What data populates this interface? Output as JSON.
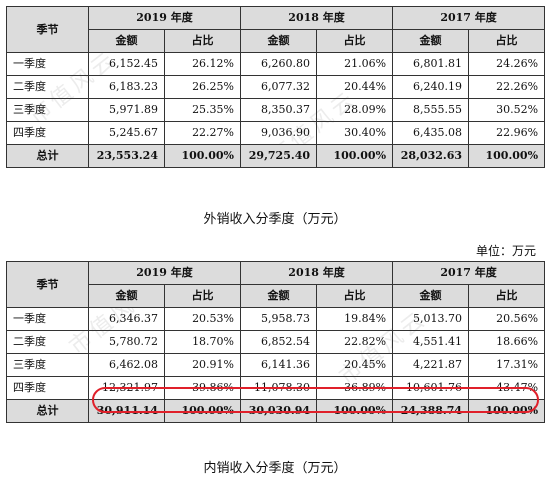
{
  "watermark": "市值风云",
  "unit_label": "单位：万元",
  "table_export": {
    "caption": "外销收入分季度（万元）",
    "header": {
      "season": "季节",
      "years": [
        "2019 年度",
        "2018 年度",
        "2017 年度"
      ],
      "amount": "金额",
      "share": "占比"
    },
    "rows": [
      {
        "season": "一季度",
        "cells": [
          "6,152.45",
          "26.12%",
          "6,260.80",
          "21.06%",
          "6,801.81",
          "24.26%"
        ]
      },
      {
        "season": "二季度",
        "cells": [
          "6,183.23",
          "26.25%",
          "6,077.32",
          "20.44%",
          "6,240.19",
          "22.26%"
        ]
      },
      {
        "season": "三季度",
        "cells": [
          "5,971.89",
          "25.35%",
          "8,350.37",
          "28.09%",
          "8,555.55",
          "30.52%"
        ]
      },
      {
        "season": "四季度",
        "cells": [
          "5,245.67",
          "22.27%",
          "9,036.90",
          "30.40%",
          "6,435.08",
          "22.96%"
        ]
      }
    ],
    "total": {
      "season": "总计",
      "cells": [
        "23,553.24",
        "100.00%",
        "29,725.40",
        "100.00%",
        "28,032.63",
        "100.00%"
      ]
    }
  },
  "table_domestic": {
    "caption": "内销收入分季度（万元）",
    "header": {
      "season": "季节",
      "years": [
        "2019 年度",
        "2018 年度",
        "2017 年度"
      ],
      "amount": "金额",
      "share": "占比"
    },
    "rows": [
      {
        "season": "一季度",
        "cells": [
          "6,346.37",
          "20.53%",
          "5,958.73",
          "19.84%",
          "5,013.70",
          "20.56%"
        ]
      },
      {
        "season": "二季度",
        "cells": [
          "5,780.72",
          "18.70%",
          "6,852.54",
          "22.82%",
          "4,551.41",
          "18.66%"
        ]
      },
      {
        "season": "三季度",
        "cells": [
          "6,462.08",
          "20.91%",
          "6,141.36",
          "20.45%",
          "4,221.87",
          "17.31%"
        ]
      },
      {
        "season": "四季度",
        "cells": [
          "12,321.97",
          "39.86%",
          "11,078.30",
          "36.89%",
          "10,601.76",
          "43.47%"
        ]
      }
    ],
    "total": {
      "season": "总计",
      "cells": [
        "30,911.14",
        "100.00%",
        "30,030.94",
        "100.00%",
        "24,388.74",
        "100.00%"
      ]
    }
  },
  "highlight_color": "#e0202a"
}
